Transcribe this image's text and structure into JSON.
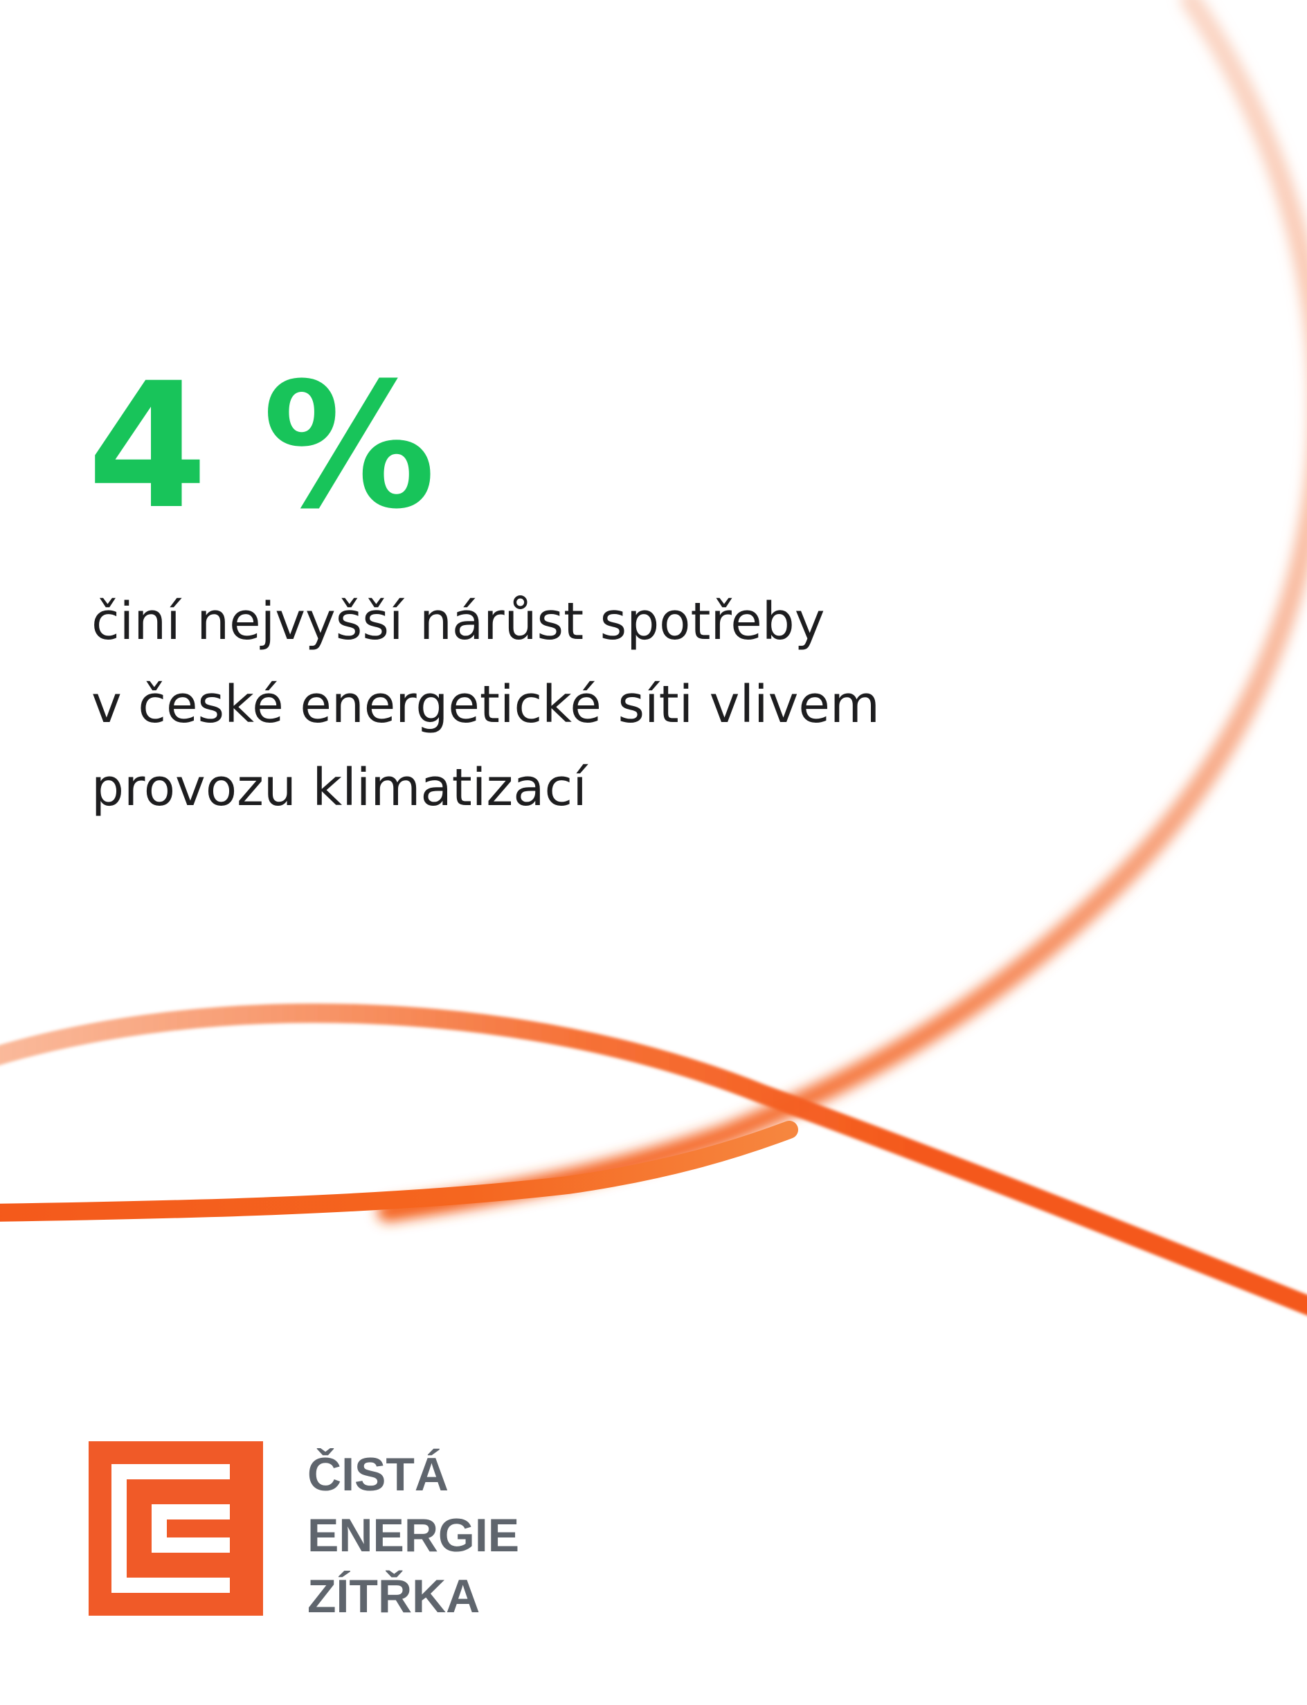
{
  "stat": {
    "value": "4 %",
    "description_lines": [
      "činí nejvyšší nárůst spotřeby",
      "v české energetické síti vlivem",
      "provozu klimatizací"
    ]
  },
  "brand": {
    "logo_lines": [
      "ČISTÁ",
      "ENERGIE",
      "ZÍTŘKA"
    ]
  },
  "colors": {
    "accent_green": "#18c45a",
    "brand_orange": "#f05a28",
    "curve_orange": "#f4591b",
    "text_dark": "#1d1d1f",
    "text_gray": "#5f656d"
  }
}
